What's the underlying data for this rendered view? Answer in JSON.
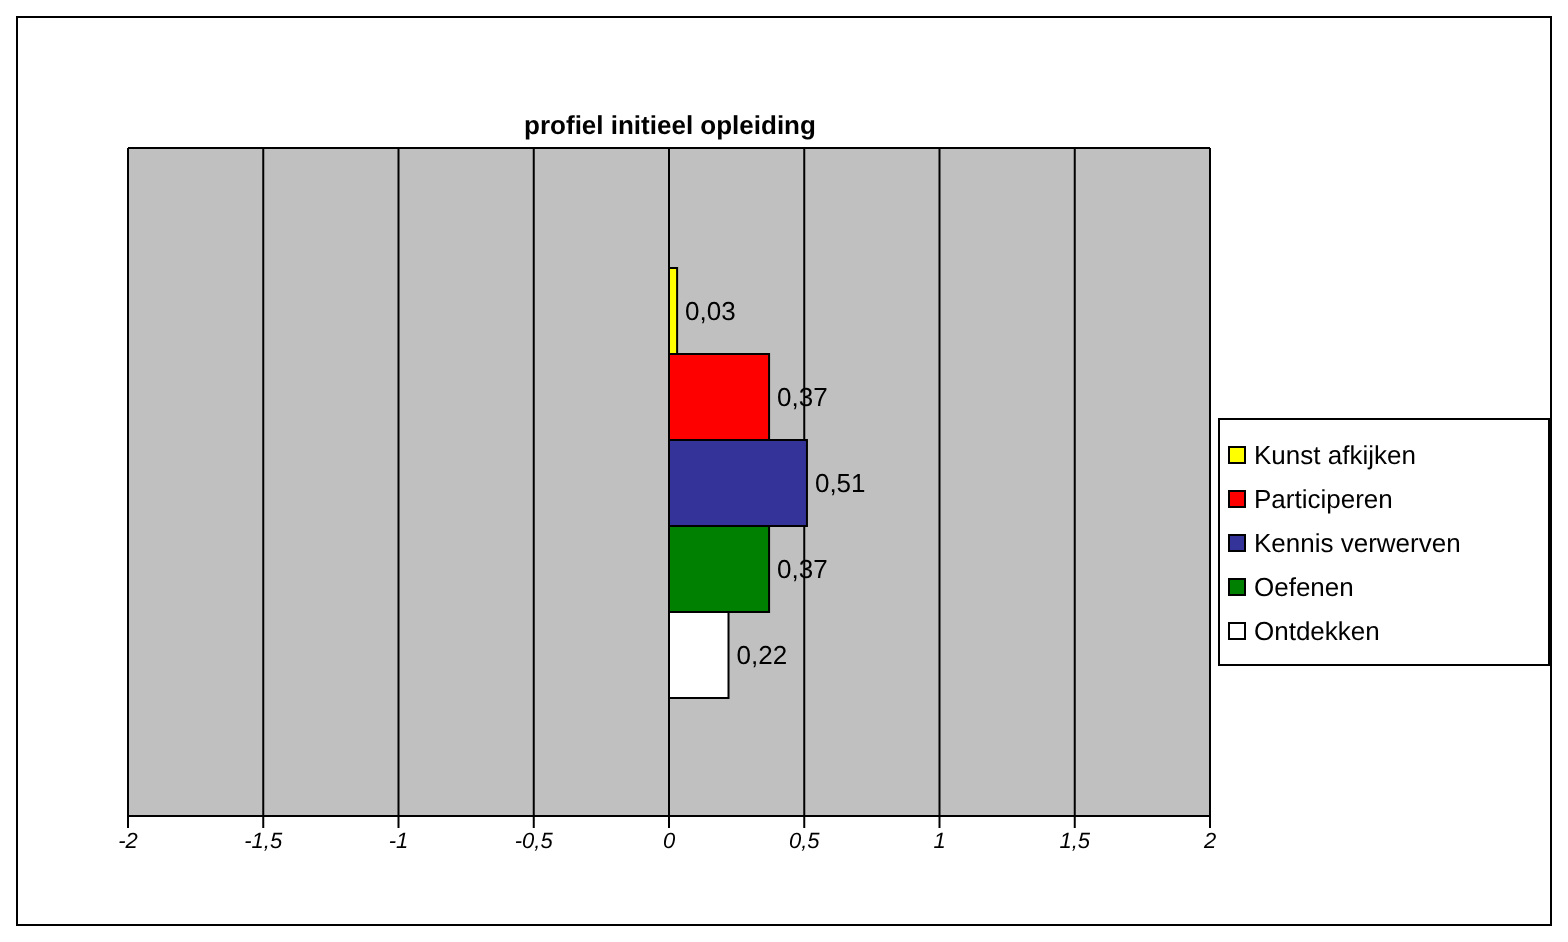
{
  "chart_data": {
    "type": "bar",
    "orientation": "horizontal",
    "title": "profiel initieel opleiding",
    "categories": [
      null
    ],
    "series": [
      {
        "name": "Kunst afkijken",
        "color": "#ffff00",
        "values": [
          0.03
        ],
        "value_labels": [
          "0,03"
        ]
      },
      {
        "name": "Participeren",
        "color": "#ff0000",
        "values": [
          0.37
        ],
        "value_labels": [
          "0,37"
        ]
      },
      {
        "name": "Kennis verwerven",
        "color": "#333399",
        "values": [
          0.51
        ],
        "value_labels": [
          "0,51"
        ]
      },
      {
        "name": "Oefenen",
        "color": "#008000",
        "values": [
          0.37
        ],
        "value_labels": [
          "0,37"
        ]
      },
      {
        "name": "Ontdekken",
        "color": "#ffffff",
        "values": [
          0.22
        ],
        "value_labels": [
          "0,22"
        ]
      }
    ],
    "xlim": [
      -2,
      2
    ],
    "xticks": [
      -2,
      {
        "value": -1.5,
        "label": "-1,5"
      },
      -1,
      {
        "value": -0.5,
        "label": "-0,5"
      },
      0,
      {
        "value": 0.5,
        "label": "0,5"
      },
      1,
      {
        "value": 1.5,
        "label": "1,5"
      },
      2
    ],
    "grid": "x",
    "legend": "right"
  }
}
